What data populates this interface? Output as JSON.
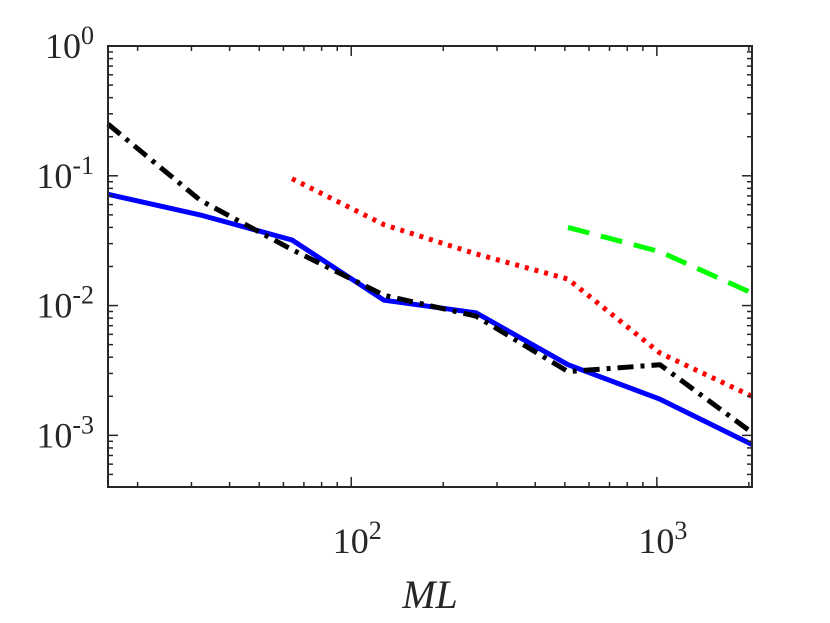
{
  "chart_data": {
    "type": "line",
    "title": "",
    "xlabel": "ML",
    "ylabel": "",
    "xscale": "log",
    "yscale": "log",
    "xlim": [
      16,
      2048
    ],
    "ylim": [
      0.0004,
      1
    ],
    "grid": false,
    "x_ticks": [
      {
        "value": 100,
        "base": "10",
        "exp": "2"
      },
      {
        "value": 1000,
        "base": "10",
        "exp": "3"
      }
    ],
    "y_ticks": [
      {
        "value": 1,
        "base": "10",
        "exp": "0"
      },
      {
        "value": 0.1,
        "base": "10",
        "exp": "-1"
      },
      {
        "value": 0.01,
        "base": "10",
        "exp": "-2"
      },
      {
        "value": 0.001,
        "base": "10",
        "exp": "-3"
      }
    ],
    "series": [
      {
        "name": "solid-blue",
        "color": "#0000ff",
        "style": "solid",
        "x": [
          16,
          32,
          64,
          128,
          256,
          512,
          1024,
          2048
        ],
        "y": [
          0.072,
          0.05,
          0.032,
          0.011,
          0.0088,
          0.0035,
          0.0019,
          0.00085
        ]
      },
      {
        "name": "dashdot-black",
        "color": "#000000",
        "style": "dashdot",
        "x": [
          16,
          32,
          64,
          128,
          256,
          512,
          1024,
          2048
        ],
        "y": [
          0.25,
          0.065,
          0.027,
          0.012,
          0.0083,
          0.0031,
          0.0035,
          0.00105
        ]
      },
      {
        "name": "dotted-red",
        "color": "#ff0000",
        "style": "dotted",
        "x": [
          64,
          128,
          256,
          512,
          1024,
          2048
        ],
        "y": [
          0.095,
          0.042,
          0.025,
          0.016,
          0.0043,
          0.002
        ]
      },
      {
        "name": "dashed-green",
        "color": "#00ff00",
        "style": "dashed",
        "x": [
          512,
          1024,
          2048
        ],
        "y": [
          0.04,
          0.026,
          0.0125
        ]
      }
    ]
  }
}
